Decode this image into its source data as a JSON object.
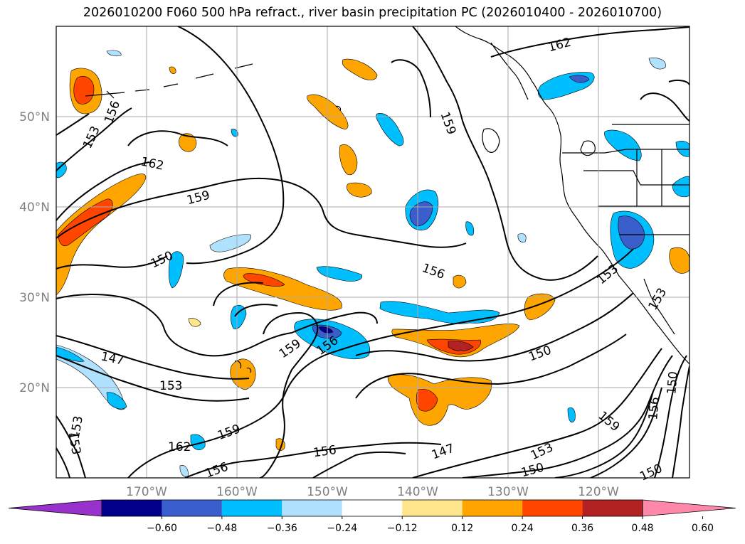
{
  "title": "2026010200 F060 500 hPa refract., river basin precipitation PC (2026010400 - 2026010700)",
  "map": {
    "lat_labels": [
      "50°N",
      "40°N",
      "30°N",
      "20°N"
    ],
    "lon_labels": [
      "170°W",
      "160°W",
      "150°W",
      "140°W",
      "130°W",
      "120°W"
    ],
    "contour_labels": [
      {
        "text": "162"
      },
      {
        "text": "162"
      },
      {
        "text": "162"
      },
      {
        "text": "159"
      },
      {
        "text": "159"
      },
      {
        "text": "159"
      },
      {
        "text": "159"
      },
      {
        "text": "159"
      },
      {
        "text": "156"
      },
      {
        "text": "156"
      },
      {
        "text": "156"
      },
      {
        "text": "156"
      },
      {
        "text": "156"
      },
      {
        "text": "156"
      },
      {
        "text": "153"
      },
      {
        "text": "153"
      },
      {
        "text": "153"
      },
      {
        "text": "153"
      },
      {
        "text": "153"
      },
      {
        "text": "153"
      },
      {
        "text": "153"
      },
      {
        "text": "150"
      },
      {
        "text": "150"
      },
      {
        "text": "150"
      },
      {
        "text": "150"
      },
      {
        "text": "150"
      },
      {
        "text": "147"
      },
      {
        "text": "147"
      }
    ]
  },
  "colorbar": {
    "colors": [
      "#9932cc",
      "#00008b",
      "#3a5fcd",
      "#00bfff",
      "#b0e2ff",
      "#ffffff",
      "#ffe68c",
      "#ffa500",
      "#ff4500",
      "#b22222",
      "#ff88aa"
    ],
    "tick_labels": [
      "−0.60",
      "−0.48",
      "−0.36",
      "−0.24",
      "−0.12",
      "0.12",
      "0.24",
      "0.36",
      "0.48",
      "0.60"
    ]
  }
}
